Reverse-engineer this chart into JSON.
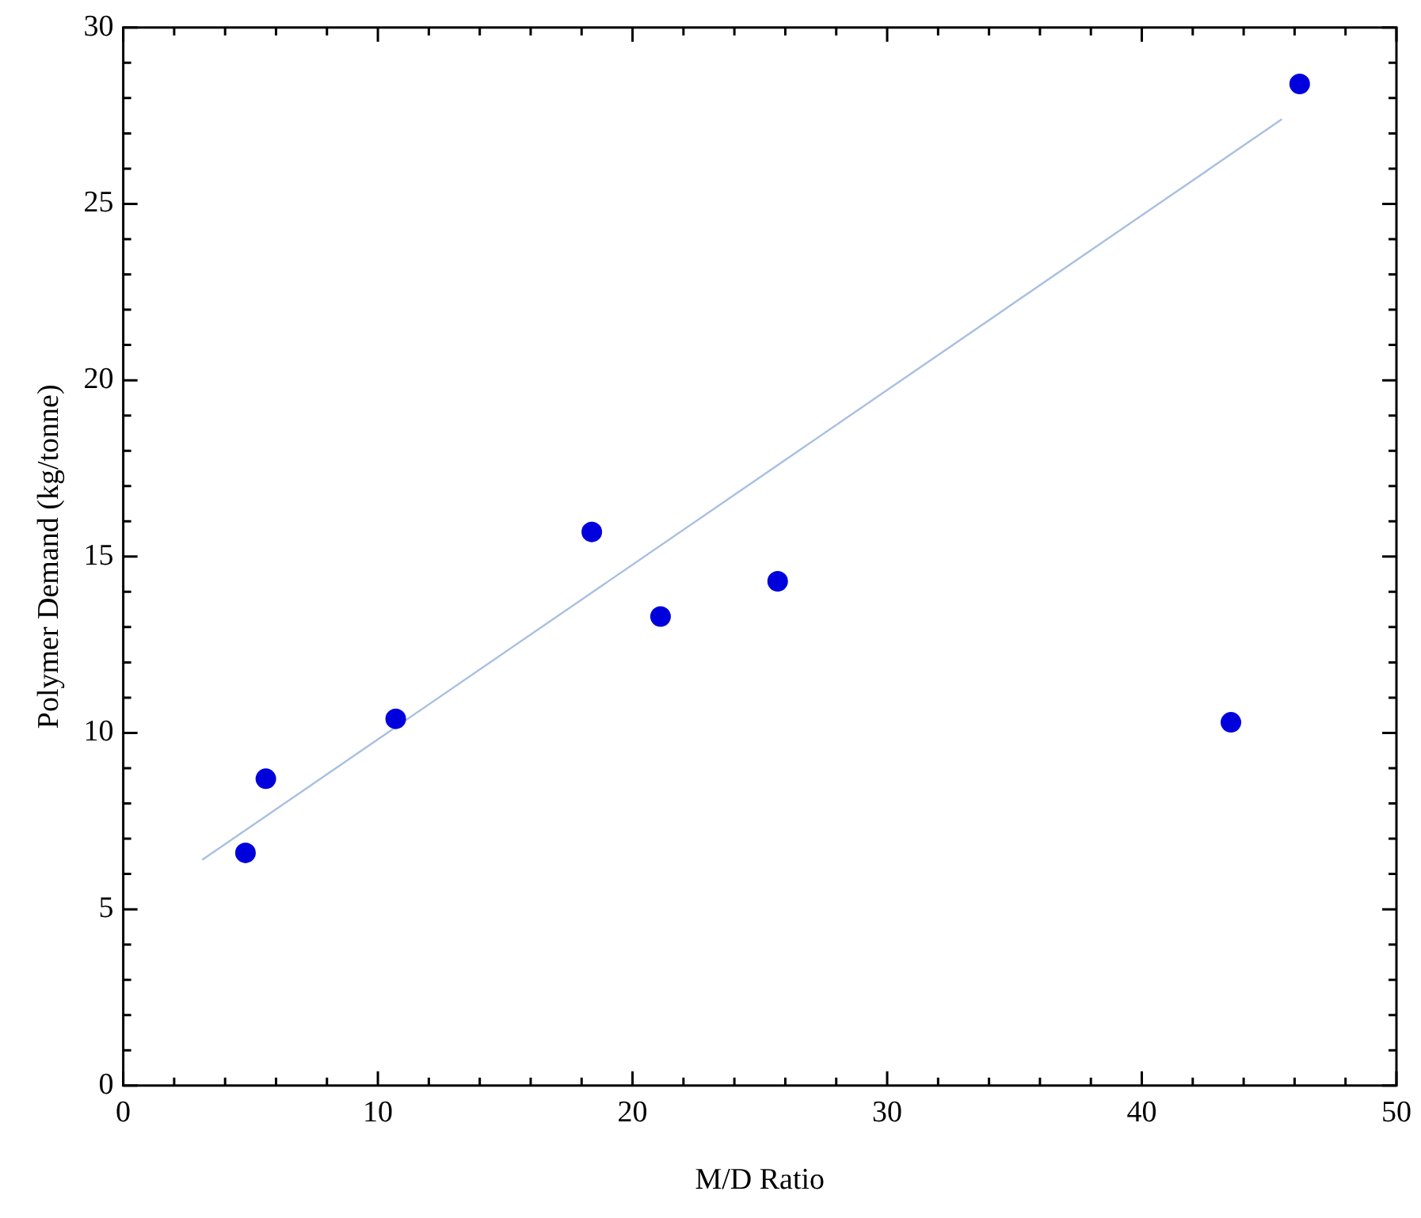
{
  "chart_data": {
    "type": "scatter",
    "xlabel": "M/D Ratio",
    "ylabel": "Polymer Demand (kg/tonne)",
    "xlim": [
      0,
      50
    ],
    "ylim": [
      0,
      30
    ],
    "xticks": [
      0,
      {
        "value": 2,
        "label": null
      },
      {
        "value": 4,
        "label": null
      },
      {
        "value": 6,
        "label": null
      },
      {
        "value": 8,
        "label": null
      },
      10,
      {
        "value": 12,
        "label": null
      },
      {
        "value": 14,
        "label": null
      },
      {
        "value": 16,
        "label": null
      },
      {
        "value": 18,
        "label": null
      },
      20,
      {
        "value": 22,
        "label": null
      },
      {
        "value": 24,
        "label": null
      },
      {
        "value": 26,
        "label": null
      },
      {
        "value": 28,
        "label": null
      },
      30,
      {
        "value": 32,
        "label": null
      },
      {
        "value": 34,
        "label": null
      },
      {
        "value": 36,
        "label": null
      },
      {
        "value": 38,
        "label": null
      },
      40,
      {
        "value": 42,
        "label": null
      },
      {
        "value": 44,
        "label": null
      },
      {
        "value": 46,
        "label": null
      },
      {
        "value": 48,
        "label": null
      },
      50
    ],
    "yticks": [
      0,
      {
        "value": 1,
        "label": null
      },
      {
        "value": 2,
        "label": null
      },
      {
        "value": 3,
        "label": null
      },
      {
        "value": 4,
        "label": null
      },
      5,
      {
        "value": 6,
        "label": null
      },
      {
        "value": 7,
        "label": null
      },
      {
        "value": 8,
        "label": null
      },
      {
        "value": 9,
        "label": null
      },
      10,
      {
        "value": 11,
        "label": null
      },
      {
        "value": 12,
        "label": null
      },
      {
        "value": 13,
        "label": null
      },
      {
        "value": 14,
        "label": null
      },
      15,
      {
        "value": 16,
        "label": null
      },
      {
        "value": 17,
        "label": null
      },
      {
        "value": 18,
        "label": null
      },
      {
        "value": 19,
        "label": null
      },
      20,
      {
        "value": 21,
        "label": null
      },
      {
        "value": 22,
        "label": null
      },
      {
        "value": 23,
        "label": null
      },
      {
        "value": 24,
        "label": null
      },
      25,
      {
        "value": 26,
        "label": null
      },
      {
        "value": 27,
        "label": null
      },
      {
        "value": 28,
        "label": null
      },
      {
        "value": 29,
        "label": null
      },
      30
    ],
    "series": [
      {
        "color": "#0000dd",
        "marker": "circle",
        "x": [
          4.8,
          5.6,
          10.7,
          18.4,
          21.1,
          25.7,
          43.5,
          46.2
        ],
        "values": [
          6.6,
          8.7,
          10.4,
          15.7,
          13.3,
          14.3,
          10.3,
          28.4
        ]
      },
      {
        "type": "line",
        "marker": "none",
        "color": "#a8c0e0",
        "x": [
          3.1,
          45.5
        ],
        "values": [
          6.4,
          27.4
        ]
      }
    ]
  }
}
